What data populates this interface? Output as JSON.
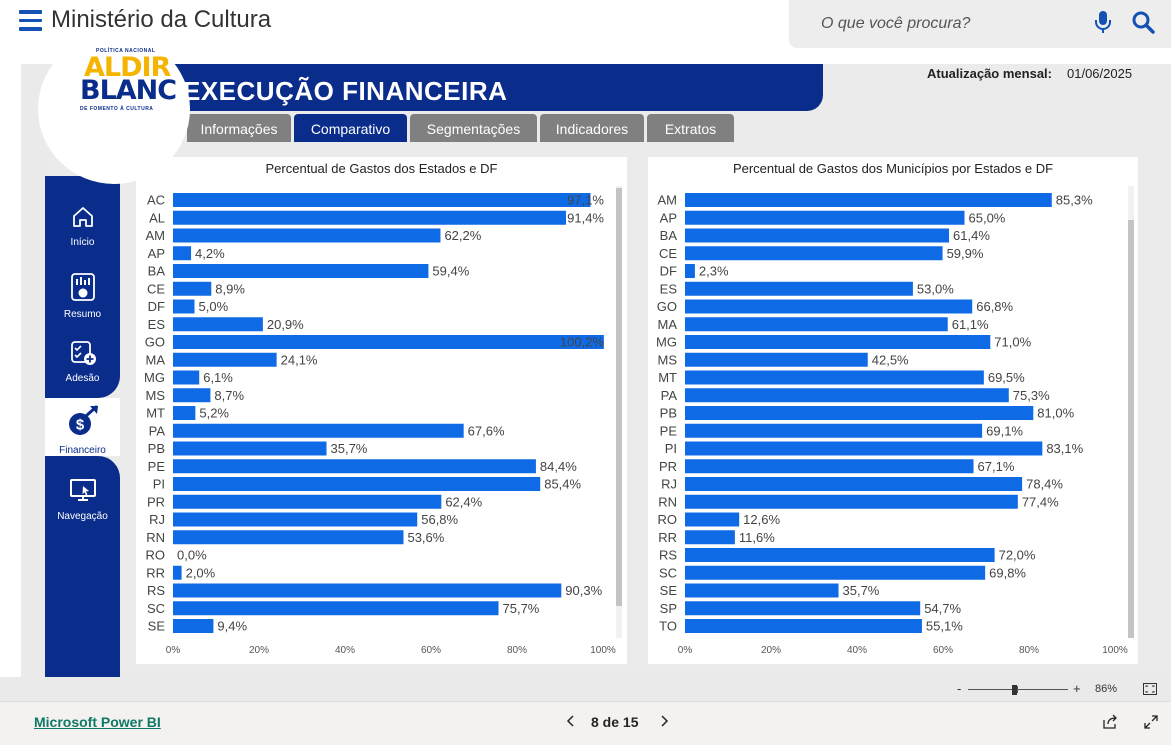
{
  "site": {
    "title": "Ministério da Cultura",
    "search_placeholder": "O que você procura?",
    "icons": {
      "menu": "menu-icon",
      "mic": "microphone-icon",
      "search": "search-icon"
    }
  },
  "report": {
    "title": "EXECUÇÃO FINANCEIRA",
    "update_label": "Atualização mensal:",
    "update_value": "01/06/2025",
    "logo": {
      "top_text": "POLÍTICA NACIONAL",
      "line1": "ALDIR",
      "line2": "BLANC",
      "bottom_text": "DE FOMENTO À CULTURA"
    },
    "tabs": [
      {
        "label": "Informações",
        "active": false
      },
      {
        "label": "Comparativo",
        "active": true
      },
      {
        "label": "Segmentações",
        "active": false
      },
      {
        "label": "Indicadores",
        "active": false
      },
      {
        "label": "Extratos",
        "active": false
      }
    ],
    "nav": [
      {
        "label": "Início",
        "icon": "home-icon"
      },
      {
        "label": "Resumo",
        "icon": "report-icon"
      },
      {
        "label": "Adesão",
        "icon": "checklist-add-icon"
      },
      {
        "label": "Financeiro",
        "icon": "dollar-growth-icon",
        "active": true
      },
      {
        "label": "Navegação",
        "icon": "monitor-icon"
      }
    ],
    "colors": {
      "brand_blue": "#0a2d8c",
      "bar": "#0f6ae6",
      "tab_inactive": "#808080"
    }
  },
  "chart_data": [
    {
      "type": "bar",
      "orientation": "horizontal",
      "title": "Percentual de Gastos dos Estados e DF",
      "categories": [
        "AC",
        "AL",
        "AM",
        "AP",
        "BA",
        "CE",
        "DF",
        "ES",
        "GO",
        "MA",
        "MG",
        "MS",
        "MT",
        "PA",
        "PB",
        "PE",
        "PI",
        "PR",
        "RJ",
        "RN",
        "RO",
        "RR",
        "RS",
        "SC",
        "SE"
      ],
      "values": [
        97.1,
        91.4,
        62.2,
        4.2,
        59.4,
        8.9,
        5.0,
        20.9,
        100.2,
        24.1,
        6.1,
        8.7,
        5.2,
        67.6,
        35.7,
        84.4,
        85.4,
        62.4,
        56.8,
        53.6,
        0.0,
        2.0,
        90.3,
        75.7,
        9.4
      ],
      "labels": [
        "97,1%",
        "91,4%",
        "62,2%",
        "4,2%",
        "59,4%",
        "8,9%",
        "5,0%",
        "20,9%",
        "100,2%",
        "24,1%",
        "6,1%",
        "8,7%",
        "5,2%",
        "67,6%",
        "35,7%",
        "84,4%",
        "85,4%",
        "62,4%",
        "56,8%",
        "53,6%",
        "0,0%",
        "2,0%",
        "90,3%",
        "75,7%",
        "9,4%"
      ],
      "xticks": [
        "0%",
        "20%",
        "40%",
        "60%",
        "80%",
        "100%"
      ],
      "xlim": [
        0,
        100
      ],
      "grid": false
    },
    {
      "type": "bar",
      "orientation": "horizontal",
      "title": "Percentual de Gastos dos Municípios por Estados e DF",
      "categories": [
        "AM",
        "AP",
        "BA",
        "CE",
        "DF",
        "ES",
        "GO",
        "MA",
        "MG",
        "MS",
        "MT",
        "PA",
        "PB",
        "PE",
        "PI",
        "PR",
        "RJ",
        "RN",
        "RO",
        "RR",
        "RS",
        "SC",
        "SE",
        "SP",
        "TO"
      ],
      "values": [
        85.3,
        65.0,
        61.4,
        59.9,
        2.3,
        53.0,
        66.8,
        61.1,
        71.0,
        42.5,
        69.5,
        75.3,
        81.0,
        69.1,
        83.1,
        67.1,
        78.4,
        77.4,
        12.6,
        11.6,
        72.0,
        69.8,
        35.7,
        54.7,
        55.1
      ],
      "labels": [
        "85,3%",
        "65,0%",
        "61,4%",
        "59,9%",
        "2,3%",
        "53,0%",
        "66,8%",
        "61,1%",
        "71,0%",
        "42,5%",
        "69,5%",
        "75,3%",
        "81,0%",
        "69,1%",
        "83,1%",
        "67,1%",
        "78,4%",
        "77,4%",
        "12,6%",
        "11,6%",
        "72,0%",
        "69,8%",
        "35,7%",
        "54,7%",
        "55,1%"
      ],
      "xticks": [
        "0%",
        "20%",
        "40%",
        "60%",
        "80%",
        "100%"
      ],
      "xlim": [
        0,
        100
      ],
      "grid": false
    }
  ],
  "viewer": {
    "zoom_minus": "-",
    "zoom_plus": "+",
    "zoom": "86%",
    "zoom_level": 0.86,
    "brand_link": "Microsoft Power BI",
    "page_indicator": "8 de 15"
  }
}
